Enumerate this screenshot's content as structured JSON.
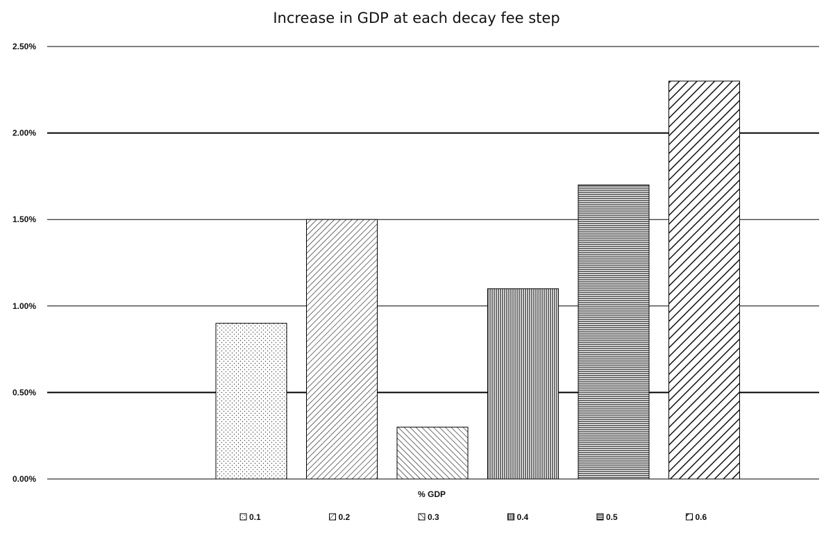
{
  "chart_data": {
    "type": "bar",
    "title": "Increase in GDP at each decay fee step",
    "category_label": "% GDP",
    "ylabel": "",
    "ylim": [
      0,
      0.025
    ],
    "yticks": [
      0,
      0.005,
      0.01,
      0.015,
      0.02,
      0.025
    ],
    "ytick_labels": [
      "0.00%",
      "0.50%",
      "1.00%",
      "1.50%",
      "2.00%",
      "2.50%"
    ],
    "grid": true,
    "legend_position": "bottom",
    "series": [
      {
        "name": "0.1",
        "value": 0.009,
        "pattern": "dots"
      },
      {
        "name": "0.2",
        "value": 0.015,
        "pattern": "diag-down"
      },
      {
        "name": "0.3",
        "value": 0.003,
        "pattern": "diag-up"
      },
      {
        "name": "0.4",
        "value": 0.011,
        "pattern": "vertical"
      },
      {
        "name": "0.5",
        "value": 0.017,
        "pattern": "horizontal"
      },
      {
        "name": "0.6",
        "value": 0.023,
        "pattern": "diag-down-wide"
      }
    ]
  }
}
